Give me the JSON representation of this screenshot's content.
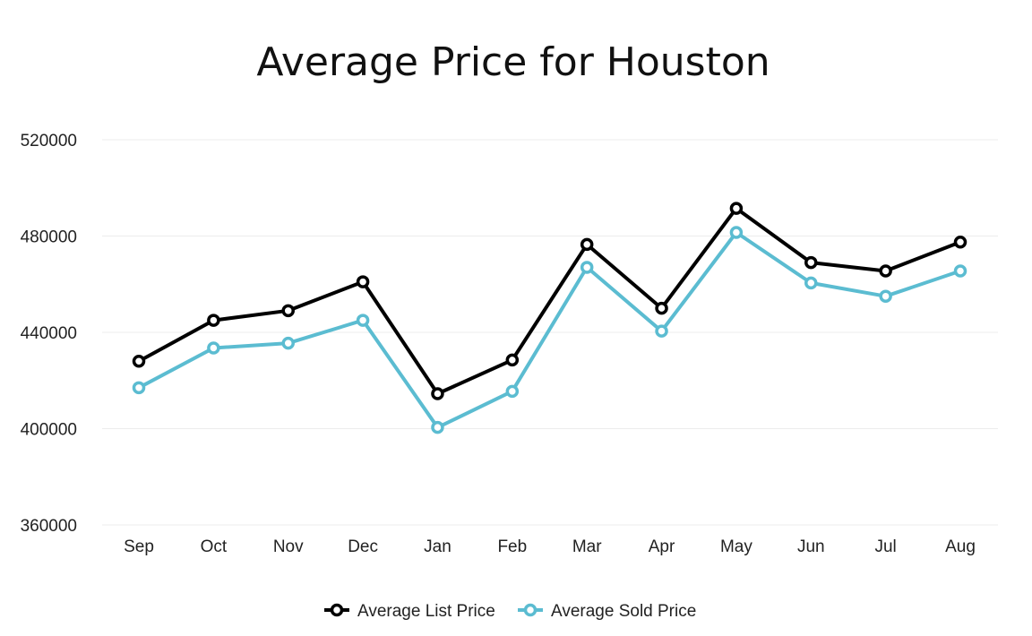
{
  "chart_data": {
    "type": "line",
    "title": "Average Price for Houston",
    "xlabel": "",
    "ylabel": "",
    "categories": [
      "Sep",
      "Oct",
      "Nov",
      "Dec",
      "Jan",
      "Feb",
      "Mar",
      "Apr",
      "May",
      "Jun",
      "Jul",
      "Aug"
    ],
    "ylim": [
      360000,
      520000
    ],
    "yticks": [
      360000,
      400000,
      440000,
      480000,
      520000
    ],
    "grid": true,
    "legend_position": "bottom-center",
    "series": [
      {
        "name": "Average List Price",
        "color": "#000000",
        "values": [
          428000,
          445000,
          449000,
          461000,
          414500,
          428500,
          476500,
          450000,
          491500,
          469000,
          465500,
          477500
        ]
      },
      {
        "name": "Average Sold Price",
        "color": "#5bbcd1",
        "values": [
          417000,
          433500,
          435500,
          445000,
          400500,
          415500,
          467000,
          440500,
          481500,
          460500,
          455000,
          465500
        ]
      }
    ]
  }
}
